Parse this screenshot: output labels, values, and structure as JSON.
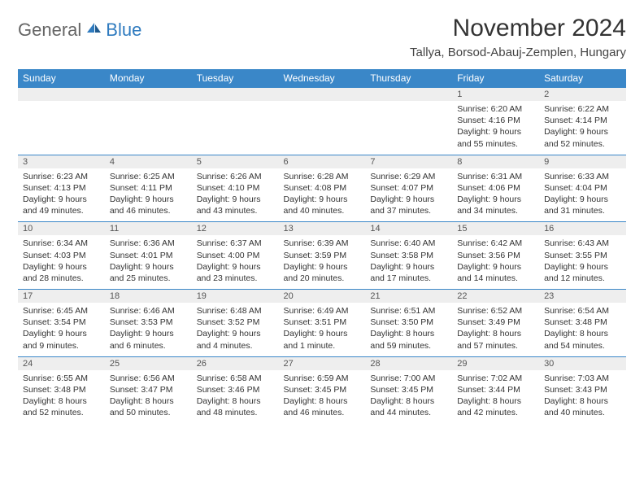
{
  "brand": {
    "part1": "General",
    "part2": "Blue"
  },
  "title": "November 2024",
  "location": "Tallya, Borsod-Abauj-Zemplen, Hungary",
  "colors": {
    "header_bg": "#3a87c8",
    "header_text": "#ffffff",
    "daynum_bg": "#eeeeee",
    "border": "#3a87c8",
    "brand_gray": "#666666",
    "brand_blue": "#2f7bbf"
  },
  "weekdays": [
    "Sunday",
    "Monday",
    "Tuesday",
    "Wednesday",
    "Thursday",
    "Friday",
    "Saturday"
  ],
  "weeks": [
    [
      null,
      null,
      null,
      null,
      null,
      {
        "n": "1",
        "sr": "Sunrise: 6:20 AM",
        "ss": "Sunset: 4:16 PM",
        "d1": "Daylight: 9 hours",
        "d2": "and 55 minutes."
      },
      {
        "n": "2",
        "sr": "Sunrise: 6:22 AM",
        "ss": "Sunset: 4:14 PM",
        "d1": "Daylight: 9 hours",
        "d2": "and 52 minutes."
      }
    ],
    [
      {
        "n": "3",
        "sr": "Sunrise: 6:23 AM",
        "ss": "Sunset: 4:13 PM",
        "d1": "Daylight: 9 hours",
        "d2": "and 49 minutes."
      },
      {
        "n": "4",
        "sr": "Sunrise: 6:25 AM",
        "ss": "Sunset: 4:11 PM",
        "d1": "Daylight: 9 hours",
        "d2": "and 46 minutes."
      },
      {
        "n": "5",
        "sr": "Sunrise: 6:26 AM",
        "ss": "Sunset: 4:10 PM",
        "d1": "Daylight: 9 hours",
        "d2": "and 43 minutes."
      },
      {
        "n": "6",
        "sr": "Sunrise: 6:28 AM",
        "ss": "Sunset: 4:08 PM",
        "d1": "Daylight: 9 hours",
        "d2": "and 40 minutes."
      },
      {
        "n": "7",
        "sr": "Sunrise: 6:29 AM",
        "ss": "Sunset: 4:07 PM",
        "d1": "Daylight: 9 hours",
        "d2": "and 37 minutes."
      },
      {
        "n": "8",
        "sr": "Sunrise: 6:31 AM",
        "ss": "Sunset: 4:06 PM",
        "d1": "Daylight: 9 hours",
        "d2": "and 34 minutes."
      },
      {
        "n": "9",
        "sr": "Sunrise: 6:33 AM",
        "ss": "Sunset: 4:04 PM",
        "d1": "Daylight: 9 hours",
        "d2": "and 31 minutes."
      }
    ],
    [
      {
        "n": "10",
        "sr": "Sunrise: 6:34 AM",
        "ss": "Sunset: 4:03 PM",
        "d1": "Daylight: 9 hours",
        "d2": "and 28 minutes."
      },
      {
        "n": "11",
        "sr": "Sunrise: 6:36 AM",
        "ss": "Sunset: 4:01 PM",
        "d1": "Daylight: 9 hours",
        "d2": "and 25 minutes."
      },
      {
        "n": "12",
        "sr": "Sunrise: 6:37 AM",
        "ss": "Sunset: 4:00 PM",
        "d1": "Daylight: 9 hours",
        "d2": "and 23 minutes."
      },
      {
        "n": "13",
        "sr": "Sunrise: 6:39 AM",
        "ss": "Sunset: 3:59 PM",
        "d1": "Daylight: 9 hours",
        "d2": "and 20 minutes."
      },
      {
        "n": "14",
        "sr": "Sunrise: 6:40 AM",
        "ss": "Sunset: 3:58 PM",
        "d1": "Daylight: 9 hours",
        "d2": "and 17 minutes."
      },
      {
        "n": "15",
        "sr": "Sunrise: 6:42 AM",
        "ss": "Sunset: 3:56 PM",
        "d1": "Daylight: 9 hours",
        "d2": "and 14 minutes."
      },
      {
        "n": "16",
        "sr": "Sunrise: 6:43 AM",
        "ss": "Sunset: 3:55 PM",
        "d1": "Daylight: 9 hours",
        "d2": "and 12 minutes."
      }
    ],
    [
      {
        "n": "17",
        "sr": "Sunrise: 6:45 AM",
        "ss": "Sunset: 3:54 PM",
        "d1": "Daylight: 9 hours",
        "d2": "and 9 minutes."
      },
      {
        "n": "18",
        "sr": "Sunrise: 6:46 AM",
        "ss": "Sunset: 3:53 PM",
        "d1": "Daylight: 9 hours",
        "d2": "and 6 minutes."
      },
      {
        "n": "19",
        "sr": "Sunrise: 6:48 AM",
        "ss": "Sunset: 3:52 PM",
        "d1": "Daylight: 9 hours",
        "d2": "and 4 minutes."
      },
      {
        "n": "20",
        "sr": "Sunrise: 6:49 AM",
        "ss": "Sunset: 3:51 PM",
        "d1": "Daylight: 9 hours",
        "d2": "and 1 minute."
      },
      {
        "n": "21",
        "sr": "Sunrise: 6:51 AM",
        "ss": "Sunset: 3:50 PM",
        "d1": "Daylight: 8 hours",
        "d2": "and 59 minutes."
      },
      {
        "n": "22",
        "sr": "Sunrise: 6:52 AM",
        "ss": "Sunset: 3:49 PM",
        "d1": "Daylight: 8 hours",
        "d2": "and 57 minutes."
      },
      {
        "n": "23",
        "sr": "Sunrise: 6:54 AM",
        "ss": "Sunset: 3:48 PM",
        "d1": "Daylight: 8 hours",
        "d2": "and 54 minutes."
      }
    ],
    [
      {
        "n": "24",
        "sr": "Sunrise: 6:55 AM",
        "ss": "Sunset: 3:48 PM",
        "d1": "Daylight: 8 hours",
        "d2": "and 52 minutes."
      },
      {
        "n": "25",
        "sr": "Sunrise: 6:56 AM",
        "ss": "Sunset: 3:47 PM",
        "d1": "Daylight: 8 hours",
        "d2": "and 50 minutes."
      },
      {
        "n": "26",
        "sr": "Sunrise: 6:58 AM",
        "ss": "Sunset: 3:46 PM",
        "d1": "Daylight: 8 hours",
        "d2": "and 48 minutes."
      },
      {
        "n": "27",
        "sr": "Sunrise: 6:59 AM",
        "ss": "Sunset: 3:45 PM",
        "d1": "Daylight: 8 hours",
        "d2": "and 46 minutes."
      },
      {
        "n": "28",
        "sr": "Sunrise: 7:00 AM",
        "ss": "Sunset: 3:45 PM",
        "d1": "Daylight: 8 hours",
        "d2": "and 44 minutes."
      },
      {
        "n": "29",
        "sr": "Sunrise: 7:02 AM",
        "ss": "Sunset: 3:44 PM",
        "d1": "Daylight: 8 hours",
        "d2": "and 42 minutes."
      },
      {
        "n": "30",
        "sr": "Sunrise: 7:03 AM",
        "ss": "Sunset: 3:43 PM",
        "d1": "Daylight: 8 hours",
        "d2": "and 40 minutes."
      }
    ]
  ]
}
